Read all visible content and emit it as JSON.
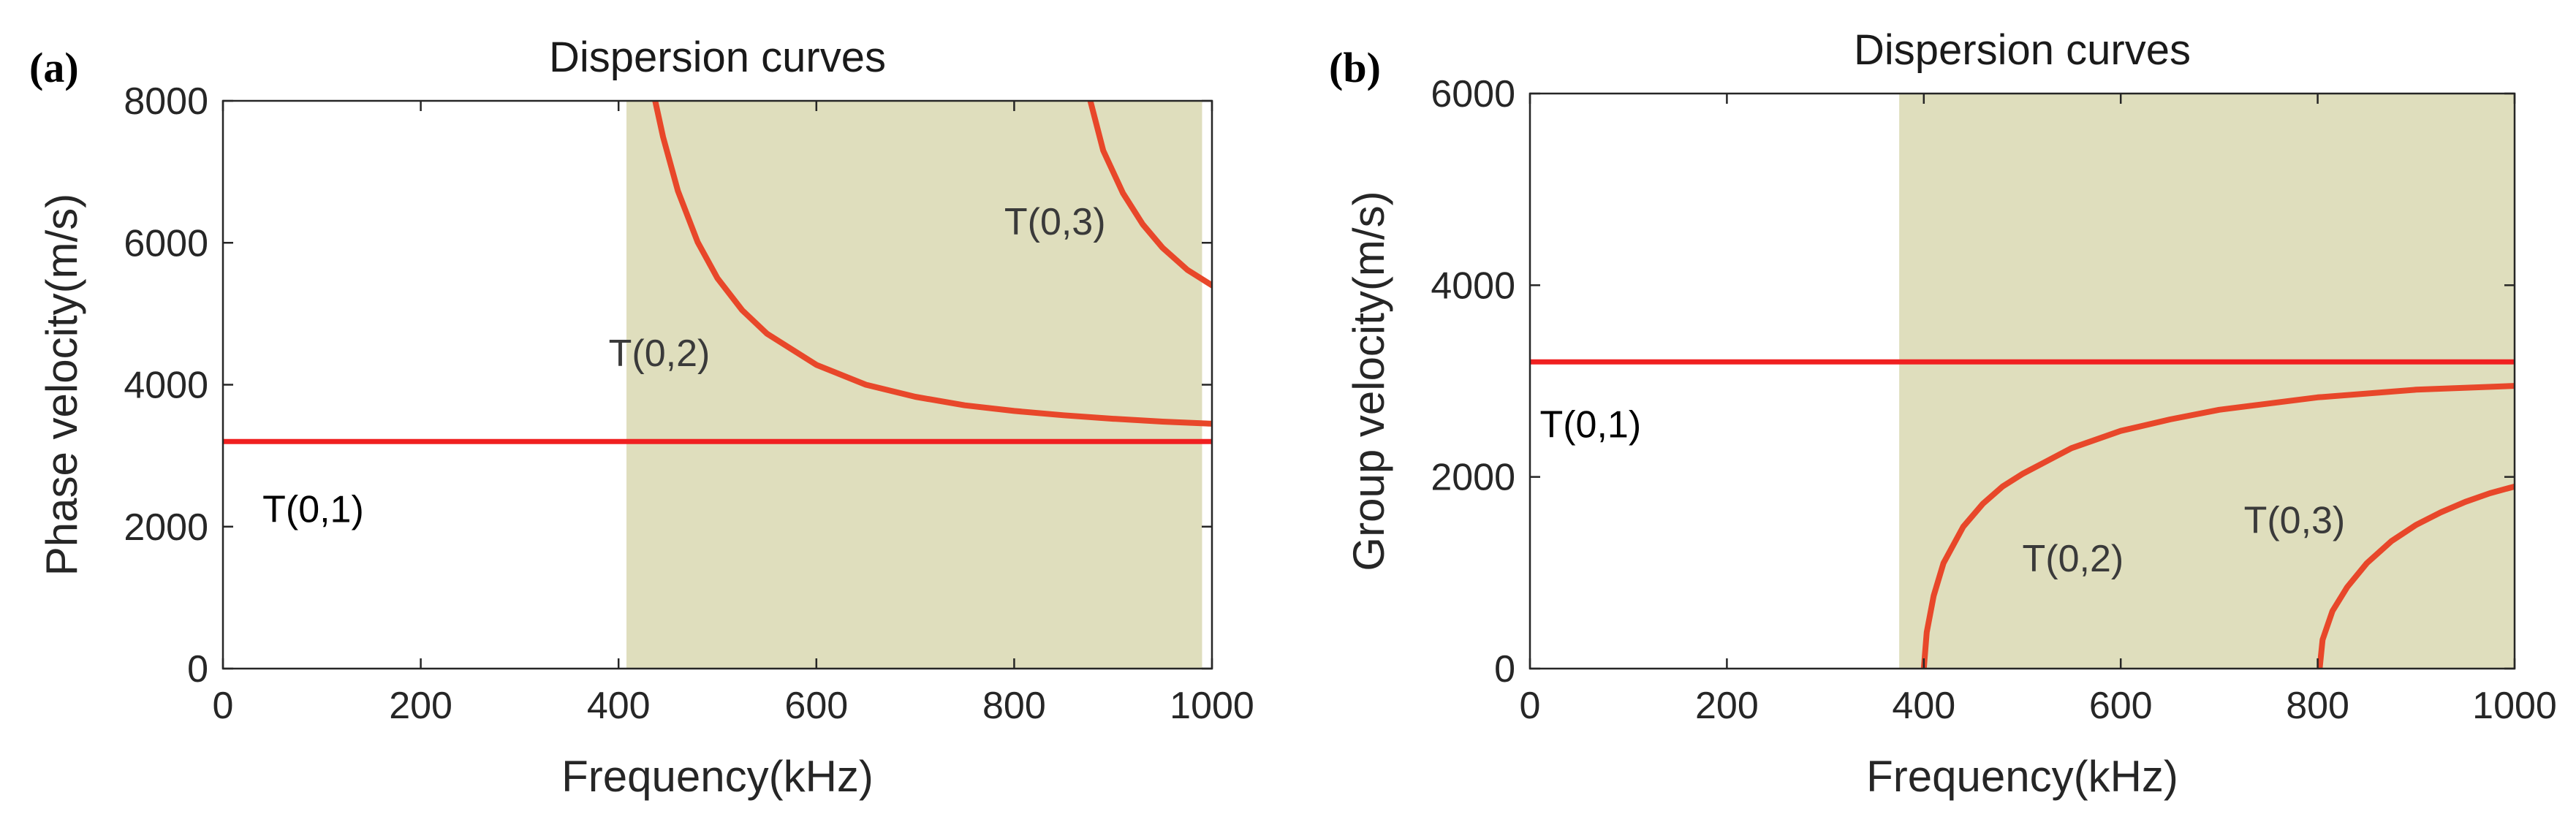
{
  "figure": {
    "panels": [
      "(a)",
      "(b)"
    ]
  },
  "colors": {
    "shade": "#dfdebd",
    "curve_orange": "#e8472a",
    "curve_red": "#f02020",
    "axis": "#262626",
    "label_dark": "#3a3a3a",
    "label_black": "#000000"
  },
  "chart_data": [
    {
      "type": "line",
      "panel": "(a)",
      "title": "Dispersion curves",
      "xlabel": "Frequency(kHz)",
      "ylabel": "Phase velocity(m/s)",
      "xlim": [
        0,
        1000
      ],
      "ylim": [
        0,
        8000
      ],
      "xticks": [
        0,
        200,
        400,
        600,
        800,
        1000
      ],
      "yticks": [
        0,
        2000,
        4000,
        6000,
        8000
      ],
      "xtick_labels": [
        "0",
        "200",
        "400",
        "600",
        "800",
        "1000"
      ],
      "ytick_labels": [
        "0",
        "2000",
        "4000",
        "6000",
        "8000"
      ],
      "shaded_region": {
        "x_start": 408,
        "x_end": 990
      },
      "series": [
        {
          "name": "T(0,1)",
          "color_key": "curve_red",
          "x": [
            0,
            1000
          ],
          "y": [
            3200,
            3200
          ]
        },
        {
          "name": "T(0,2)",
          "color_key": "curve_orange",
          "x": [
            437,
            445,
            460,
            480,
            500,
            525,
            550,
            600,
            650,
            700,
            750,
            800,
            850,
            900,
            950,
            1000
          ],
          "y": [
            8000,
            7490,
            6730,
            6010,
            5500,
            5050,
            4720,
            4280,
            4000,
            3830,
            3710,
            3630,
            3570,
            3520,
            3480,
            3450
          ]
        },
        {
          "name": "T(0,3)",
          "color_key": "curve_orange",
          "x": [
            877,
            890,
            910,
            930,
            950,
            975,
            1000
          ],
          "y": [
            8000,
            7300,
            6700,
            6260,
            5930,
            5620,
            5400
          ]
        }
      ],
      "annotations": [
        {
          "text": "T(0,1)",
          "x": 40,
          "y": 2250,
          "color_key": "label_black"
        },
        {
          "text": "T(0,2)",
          "x": 390,
          "y": 4450,
          "color_key": "label_dark"
        },
        {
          "text": "T(0,3)",
          "x": 790,
          "y": 6300,
          "color_key": "label_dark"
        }
      ]
    },
    {
      "type": "line",
      "panel": "(b)",
      "title": "Dispersion curves",
      "xlabel": "Frequency(kHz)",
      "ylabel": "Group velocity(m/s)",
      "xlim": [
        0,
        1000
      ],
      "ylim": [
        0,
        6000
      ],
      "xticks": [
        0,
        200,
        400,
        600,
        800,
        1000
      ],
      "yticks": [
        0,
        2000,
        4000,
        6000
      ],
      "xtick_labels": [
        "0",
        "200",
        "400",
        "600",
        "800",
        "1000"
      ],
      "ytick_labels": [
        "0",
        "2000",
        "4000",
        "6000"
      ],
      "shaded_region": {
        "x_start": 375,
        "x_end": 1000
      },
      "series": [
        {
          "name": "T(0,1)",
          "color_key": "curve_red",
          "x": [
            0,
            1000
          ],
          "y": [
            3200,
            3200
          ]
        },
        {
          "name": "T(0,2)",
          "color_key": "curve_orange",
          "x": [
            400,
            403,
            410,
            420,
            440,
            460,
            480,
            500,
            550,
            600,
            650,
            700,
            800,
            900,
            1000
          ],
          "y": [
            0,
            380,
            760,
            1100,
            1480,
            1720,
            1900,
            2030,
            2300,
            2480,
            2600,
            2700,
            2830,
            2910,
            2950
          ]
        },
        {
          "name": "T(0,3)",
          "color_key": "curve_orange",
          "x": [
            802,
            805,
            815,
            830,
            850,
            875,
            900,
            925,
            950,
            975,
            1000
          ],
          "y": [
            0,
            300,
            600,
            850,
            1100,
            1330,
            1500,
            1630,
            1740,
            1830,
            1900
          ]
        }
      ],
      "annotations": [
        {
          "text": "T(0,1)",
          "x": 10,
          "y": 2550,
          "color_key": "label_black"
        },
        {
          "text": "T(0,2)",
          "x": 500,
          "y": 1150,
          "color_key": "label_dark"
        },
        {
          "text": "T(0,3)",
          "x": 725,
          "y": 1550,
          "color_key": "label_dark"
        }
      ]
    }
  ]
}
